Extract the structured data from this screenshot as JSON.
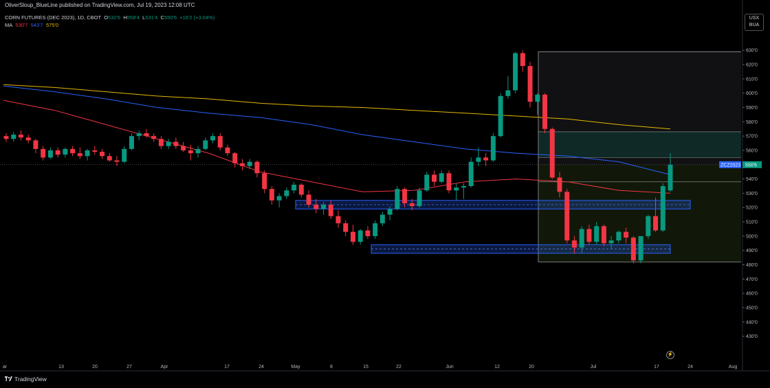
{
  "header": {
    "publisher": "OliverSloup_BlueLine published on TradingView.com, Jul 19, 2023 12:08 UTC"
  },
  "symbol": {
    "name": "CORN FUTURES (DEC 2023), 1D, CBOT",
    "open_label": "O",
    "open": "532'6",
    "high_label": "H",
    "high": "558'4",
    "low_label": "L",
    "low": "531'4",
    "close_label": "C",
    "close": "550'6",
    "change": "+16'2 (+3.04%)"
  },
  "moving_averages": {
    "label": "MA",
    "values": [
      "530'7",
      "543'7",
      "575'0"
    ],
    "colors": [
      "#f23645",
      "#2962ff",
      "#e6b800"
    ]
  },
  "currency_box": {
    "line1": "USX",
    "line2": "BUA"
  },
  "price_tag": {
    "symbol": "ZCZ2023",
    "value": "550'6"
  },
  "footer": {
    "brand": "TradingView"
  },
  "settings_icon": "lightning-icon",
  "colors": {
    "up": "#089981",
    "down": "#f23645",
    "zone": "#2962ff",
    "ma_red": "#f23645",
    "ma_blue": "#2962ff",
    "ma_yellow": "#e6b800"
  },
  "chart_data": {
    "type": "candlestick",
    "price_axis_labels": [
      "630'0",
      "620'0",
      "610'0",
      "600'0",
      "590'0",
      "580'0",
      "570'0",
      "560'0",
      "550'6",
      "540'0",
      "530'0",
      "520'0",
      "510'0",
      "500'0",
      "490'0",
      "480'0",
      "470'0",
      "460'0",
      "450'0",
      "440'0",
      "430'0"
    ],
    "time_axis_labels": [
      "ar",
      "13",
      "20",
      "27",
      "Apr",
      "17",
      "24",
      "May",
      "8",
      "15",
      "22",
      "Jun",
      "12",
      "20",
      "Jul",
      "17",
      "24",
      "Aug"
    ],
    "ylim": [
      425,
      633
    ],
    "candles": [
      [
        570,
        572,
        566,
        568
      ],
      [
        568,
        573,
        566,
        571
      ],
      [
        571,
        574,
        567,
        569
      ],
      [
        569,
        571,
        565,
        567
      ],
      [
        567,
        568,
        558,
        561
      ],
      [
        561,
        563,
        553,
        555
      ],
      [
        555,
        562,
        554,
        560
      ],
      [
        560,
        562,
        555,
        557
      ],
      [
        557,
        562,
        555,
        561
      ],
      [
        561,
        563,
        556,
        558
      ],
      [
        558,
        562,
        554,
        556
      ],
      [
        556,
        561,
        553,
        560
      ],
      [
        560,
        563,
        557,
        559
      ],
      [
        559,
        561,
        554,
        556
      ],
      [
        556,
        558,
        552,
        553
      ],
      [
        553,
        556,
        549,
        552
      ],
      [
        552,
        563,
        551,
        561
      ],
      [
        561,
        572,
        560,
        570
      ],
      [
        570,
        574,
        567,
        572
      ],
      [
        572,
        575,
        569,
        570
      ],
      [
        570,
        572,
        566,
        568
      ],
      [
        568,
        570,
        561,
        563
      ],
      [
        563,
        568,
        561,
        566
      ],
      [
        566,
        569,
        561,
        563
      ],
      [
        563,
        566,
        559,
        560
      ],
      [
        560,
        564,
        553,
        558
      ],
      [
        558,
        563,
        555,
        561
      ],
      [
        561,
        569,
        560,
        567
      ],
      [
        567,
        572,
        565,
        570
      ],
      [
        570,
        572,
        560,
        562
      ],
      [
        562,
        564,
        556,
        558
      ],
      [
        558,
        559,
        548,
        551
      ],
      [
        551,
        554,
        546,
        549
      ],
      [
        549,
        554,
        547,
        552
      ],
      [
        552,
        553,
        541,
        544
      ],
      [
        544,
        546,
        530,
        533
      ],
      [
        533,
        535,
        522,
        525
      ],
      [
        525,
        530,
        520,
        528
      ],
      [
        528,
        534,
        526,
        532
      ],
      [
        532,
        538,
        530,
        536
      ],
      [
        536,
        537,
        527,
        529
      ],
      [
        529,
        532,
        520,
        522
      ],
      [
        522,
        526,
        516,
        519
      ],
      [
        519,
        524,
        515,
        522
      ],
      [
        522,
        525,
        512,
        514
      ],
      [
        514,
        518,
        506,
        509
      ],
      [
        509,
        511,
        500,
        503
      ],
      [
        503,
        508,
        494,
        496
      ],
      [
        496,
        505,
        494,
        504
      ],
      [
        504,
        507,
        498,
        500
      ],
      [
        500,
        511,
        498,
        509
      ],
      [
        509,
        517,
        507,
        515
      ],
      [
        515,
        521,
        511,
        519
      ],
      [
        519,
        535,
        518,
        533
      ],
      [
        533,
        534,
        520,
        523
      ],
      [
        523,
        526,
        518,
        521
      ],
      [
        521,
        534,
        520,
        532
      ],
      [
        532,
        545,
        531,
        543
      ],
      [
        543,
        546,
        535,
        538
      ],
      [
        538,
        546,
        537,
        544
      ],
      [
        544,
        546,
        530,
        532
      ],
      [
        532,
        537,
        525,
        534
      ],
      [
        534,
        537,
        526,
        535
      ],
      [
        535,
        555,
        534,
        552
      ],
      [
        552,
        562,
        549,
        555
      ],
      [
        555,
        558,
        549,
        553
      ],
      [
        553,
        572,
        552,
        570
      ],
      [
        570,
        600,
        569,
        598
      ],
      [
        598,
        612,
        596,
        602
      ],
      [
        602,
        629,
        600,
        628
      ],
      [
        628,
        630,
        615,
        619
      ],
      [
        619,
        622,
        590,
        594
      ],
      [
        594,
        600,
        585,
        599
      ],
      [
        599,
        600,
        572,
        575
      ],
      [
        575,
        576,
        540,
        541
      ],
      [
        541,
        545,
        527,
        531
      ],
      [
        531,
        533,
        495,
        497
      ],
      [
        497,
        500,
        488,
        492
      ],
      [
        492,
        507,
        488,
        505
      ],
      [
        505,
        508,
        494,
        496
      ],
      [
        496,
        510,
        494,
        507
      ],
      [
        507,
        508,
        493,
        495
      ],
      [
        495,
        500,
        491,
        497
      ],
      [
        497,
        504,
        495,
        503
      ],
      [
        503,
        506,
        495,
        499
      ],
      [
        499,
        500,
        481,
        483
      ],
      [
        483,
        500,
        481,
        500
      ],
      [
        500,
        515,
        498,
        514
      ],
      [
        514,
        527,
        503,
        504
      ],
      [
        504,
        537,
        503,
        535
      ],
      [
        532,
        558,
        531,
        550
      ]
    ],
    "moving_averages": {
      "MA_short": {
        "color": "#f23645",
        "values": [
          595,
          588,
          578,
          568,
          558,
          545,
          538,
          531,
          532,
          538,
          540,
          538,
          532,
          530
        ]
      },
      "MA_mid": {
        "color": "#2962ff",
        "values": [
          605,
          601,
          596,
          590,
          586,
          583,
          578,
          571,
          566,
          561,
          558,
          556,
          552,
          543
        ]
      },
      "MA_long": {
        "color": "#e6b800",
        "values": [
          606,
          604,
          601,
          598,
          596,
          593,
          591,
          590,
          588,
          586,
          584,
          582,
          578,
          575
        ]
      }
    },
    "zones": [
      {
        "label": "",
        "low": 519,
        "high": 525,
        "color": "#2962ff"
      },
      {
        "label": "",
        "low": 488,
        "high": 494,
        "color": "#2962ff"
      }
    ],
    "range_tool": {
      "top": 629,
      "bottom": 482,
      "levels": [
        573,
        555,
        538
      ]
    }
  }
}
